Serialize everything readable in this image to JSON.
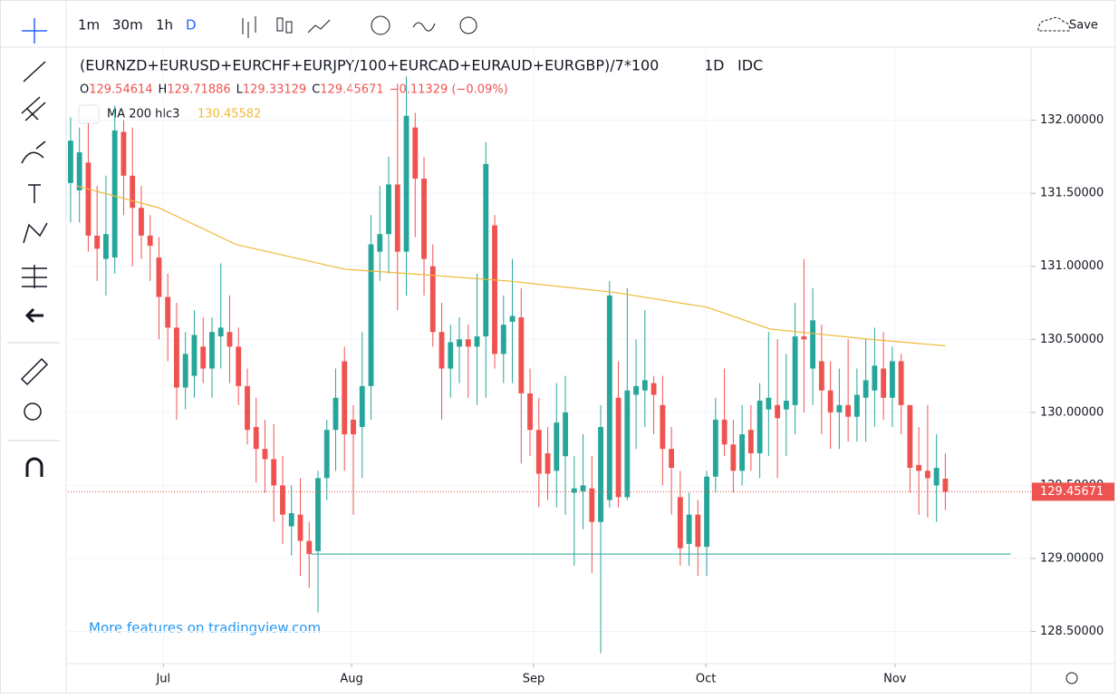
{
  "toolbar": {
    "intervals": [
      "1m",
      "30m",
      "1h",
      "D"
    ],
    "save": "Save"
  },
  "chart_data": {
    "type": "candlestick",
    "title": "(EURNZD+EURUSD+EURCHF+EURJPY/100+EURCAD+EURAUD+EURGBP)/7*100",
    "interval": "1D",
    "source": "IDC",
    "ohlc_legend": {
      "labels": [
        "O",
        "H",
        "L",
        "C"
      ],
      "values": [
        129.54614,
        129.71886,
        129.33129,
        129.45671
      ],
      "change": "−0.11329 (−0.09%)"
    },
    "up_color": "#26a69a",
    "down_color": "#ef5350",
    "ohlc": [
      [
        131.57,
        132.02,
        131.3,
        131.86
      ],
      [
        131.52,
        131.95,
        131.3,
        131.78
      ],
      [
        131.71,
        131.98,
        131.1,
        131.21
      ],
      [
        131.21,
        131.55,
        130.9,
        131.12
      ],
      [
        131.05,
        131.62,
        130.8,
        131.22
      ],
      [
        131.06,
        132.1,
        130.95,
        131.93
      ],
      [
        131.92,
        132.0,
        131.35,
        131.62
      ],
      [
        131.62,
        131.95,
        131.0,
        131.4
      ],
      [
        131.4,
        131.55,
        131.05,
        131.21
      ],
      [
        131.21,
        131.35,
        130.9,
        131.14
      ],
      [
        131.06,
        131.2,
        130.5,
        130.79
      ],
      [
        130.79,
        130.95,
        130.35,
        130.58
      ],
      [
        130.58,
        130.75,
        129.95,
        130.17
      ],
      [
        130.17,
        130.55,
        130.02,
        130.4
      ],
      [
        130.25,
        130.7,
        130.1,
        130.53
      ],
      [
        130.45,
        130.65,
        130.2,
        130.3
      ],
      [
        130.3,
        130.65,
        130.1,
        130.55
      ],
      [
        130.52,
        131.02,
        130.3,
        130.58
      ],
      [
        130.55,
        130.8,
        130.2,
        130.45
      ],
      [
        130.45,
        130.58,
        130.05,
        130.18
      ],
      [
        130.18,
        130.3,
        129.78,
        129.88
      ],
      [
        129.9,
        130.1,
        129.52,
        129.75
      ],
      [
        129.75,
        129.95,
        129.45,
        129.68
      ],
      [
        129.68,
        129.92,
        129.25,
        129.5
      ],
      [
        129.5,
        129.7,
        129.1,
        129.3
      ],
      [
        129.22,
        129.5,
        129.02,
        129.31
      ],
      [
        129.3,
        129.55,
        128.88,
        129.12
      ],
      [
        129.12,
        129.25,
        128.8,
        129.03
      ],
      [
        129.05,
        129.6,
        128.63,
        129.55
      ],
      [
        129.55,
        129.95,
        129.4,
        129.88
      ],
      [
        129.88,
        130.3,
        129.6,
        130.1
      ],
      [
        130.35,
        130.45,
        129.6,
        129.85
      ],
      [
        129.95,
        130.05,
        129.3,
        129.85
      ],
      [
        129.9,
        130.55,
        129.55,
        130.18
      ],
      [
        130.18,
        131.35,
        129.95,
        131.15
      ],
      [
        131.1,
        131.55,
        130.9,
        131.22
      ],
      [
        131.22,
        131.75,
        130.95,
        131.56
      ],
      [
        131.56,
        132.25,
        130.7,
        131.1
      ],
      [
        131.1,
        132.3,
        130.8,
        132.03
      ],
      [
        131.95,
        132.05,
        131.2,
        131.6
      ],
      [
        131.6,
        131.75,
        130.8,
        131.05
      ],
      [
        131.0,
        131.15,
        130.45,
        130.55
      ],
      [
        130.55,
        130.75,
        129.95,
        130.3
      ],
      [
        130.3,
        130.6,
        130.1,
        130.48
      ],
      [
        130.45,
        130.65,
        130.2,
        130.5
      ],
      [
        130.5,
        130.6,
        130.1,
        130.45
      ],
      [
        130.45,
        130.95,
        130.05,
        130.52
      ],
      [
        130.52,
        131.85,
        130.1,
        131.7
      ],
      [
        131.28,
        131.35,
        130.3,
        130.4
      ],
      [
        130.4,
        130.8,
        130.2,
        130.6
      ],
      [
        130.62,
        131.05,
        130.2,
        130.66
      ],
      [
        130.65,
        130.85,
        129.65,
        130.13
      ],
      [
        130.13,
        130.3,
        129.7,
        129.88
      ],
      [
        129.88,
        130.1,
        129.35,
        129.58
      ],
      [
        129.72,
        129.9,
        129.4,
        129.58
      ],
      [
        129.6,
        130.2,
        129.35,
        129.93
      ],
      [
        129.7,
        130.25,
        129.3,
        130.0
      ],
      [
        129.45,
        129.7,
        128.95,
        129.48
      ],
      [
        129.46,
        129.85,
        129.2,
        129.5
      ],
      [
        129.48,
        129.7,
        128.9,
        129.25
      ],
      [
        129.25,
        130.05,
        128.35,
        129.9
      ],
      [
        129.4,
        130.9,
        129.35,
        130.8
      ],
      [
        130.1,
        130.35,
        129.35,
        129.42
      ],
      [
        129.42,
        130.85,
        129.4,
        130.15
      ],
      [
        130.12,
        130.5,
        129.75,
        130.18
      ],
      [
        130.15,
        130.7,
        129.9,
        130.22
      ],
      [
        130.2,
        130.25,
        129.85,
        130.12
      ],
      [
        130.05,
        130.25,
        129.5,
        129.75
      ],
      [
        129.75,
        129.9,
        129.3,
        129.62
      ],
      [
        129.42,
        129.6,
        128.95,
        129.07
      ],
      [
        129.1,
        129.45,
        128.95,
        129.3
      ],
      [
        129.3,
        129.4,
        128.88,
        129.08
      ],
      [
        129.08,
        129.6,
        128.88,
        129.56
      ],
      [
        129.56,
        130.1,
        129.45,
        129.95
      ],
      [
        129.95,
        130.3,
        129.7,
        129.78
      ],
      [
        129.78,
        129.95,
        129.45,
        129.6
      ],
      [
        129.6,
        130.05,
        129.5,
        129.85
      ],
      [
        129.88,
        130.05,
        129.6,
        129.72
      ],
      [
        129.72,
        130.2,
        129.55,
        130.08
      ],
      [
        130.02,
        130.55,
        129.7,
        130.1
      ],
      [
        130.05,
        130.5,
        129.55,
        129.96
      ],
      [
        130.02,
        130.4,
        129.7,
        130.08
      ],
      [
        130.05,
        130.75,
        129.85,
        130.52
      ],
      [
        130.52,
        131.05,
        130.0,
        130.5
      ],
      [
        130.3,
        130.85,
        130.05,
        130.63
      ],
      [
        130.35,
        130.6,
        129.85,
        130.15
      ],
      [
        130.15,
        130.35,
        129.75,
        130.0
      ],
      [
        130.0,
        130.3,
        129.75,
        130.05
      ],
      [
        130.05,
        130.5,
        129.8,
        129.97
      ],
      [
        129.97,
        130.3,
        129.8,
        130.12
      ],
      [
        130.1,
        130.5,
        129.8,
        130.22
      ],
      [
        130.15,
        130.58,
        129.9,
        130.32
      ],
      [
        130.3,
        130.55,
        129.95,
        130.1
      ],
      [
        130.1,
        130.45,
        129.9,
        130.35
      ],
      [
        130.35,
        130.4,
        129.85,
        130.05
      ],
      [
        130.05,
        130.05,
        129.45,
        129.62
      ],
      [
        129.64,
        129.9,
        129.3,
        129.6
      ],
      [
        129.6,
        130.05,
        129.28,
        129.55
      ],
      [
        129.5,
        129.85,
        129.25,
        129.62
      ],
      [
        129.54614,
        129.71886,
        129.33129,
        129.45671
      ]
    ],
    "ma": {
      "name": "MA 200 hlc3",
      "color": "#f0b93a",
      "last": 130.45582,
      "x": [
        0.7,
        10,
        18.7,
        31,
        38.2,
        49.4,
        61.7,
        72,
        79.2,
        90.5,
        99
      ],
      "values": [
        131.55,
        131.4,
        131.15,
        130.98,
        130.95,
        130.9,
        130.82,
        130.72,
        130.57,
        130.5,
        130.45582
      ]
    },
    "horizontal_line": {
      "y": 129.03,
      "x": [
        27.2,
        106.4
      ],
      "color": "#26a69a"
    },
    "ylim": [
      128.28,
      132.5
    ],
    "yticks": [
      {
        "value": 128.5,
        "label": "128.50000"
      },
      {
        "value": 129,
        "label": "129.00000"
      },
      {
        "value": 129.5,
        "label": "129.50000"
      },
      {
        "value": 130,
        "label": "130.00000"
      },
      {
        "value": 130.5,
        "label": "130.50000"
      },
      {
        "value": 131,
        "label": "131.00000"
      },
      {
        "value": 131.5,
        "label": "131.50000"
      },
      {
        "value": 132,
        "label": "132.00000"
      }
    ],
    "xlim": [
      -0.3,
      108.7
    ],
    "xticks": [
      {
        "value": 10.5,
        "label": "Jul"
      },
      {
        "value": 31.8,
        "label": "Aug"
      },
      {
        "value": 52.4,
        "label": "Sep"
      },
      {
        "value": 71.9,
        "label": "Oct"
      },
      {
        "value": 93.3,
        "label": "Nov"
      }
    ],
    "grid": true,
    "watermark": "More features on tradingview.com"
  }
}
